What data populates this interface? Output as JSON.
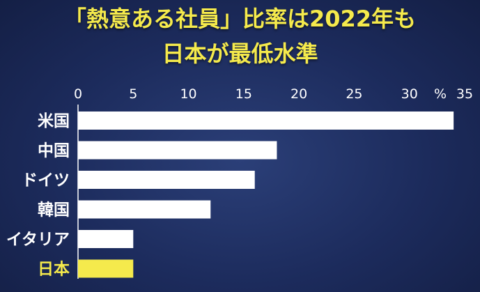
{
  "title_line1": "「熱意ある社員」比率は2022年も",
  "title_line2": "日本が最低水準",
  "chart_data": {
    "type": "bar",
    "orientation": "horizontal",
    "title": "「熱意ある社員」比率は2022年も 日本が最低水準",
    "categories": [
      "米国",
      "中国",
      "ドイツ",
      "韓国",
      "イタリア",
      "日本"
    ],
    "values": [
      34,
      18,
      16,
      12,
      5,
      5
    ],
    "unit": "%",
    "xlim": [
      0,
      35
    ],
    "ticks": [
      "0",
      "5",
      "10",
      "15",
      "20",
      "25",
      "30",
      "35"
    ],
    "highlight_category": "日本",
    "bar_color": "#ffffff",
    "highlight_color": "#f5ea4c",
    "grid": false
  }
}
